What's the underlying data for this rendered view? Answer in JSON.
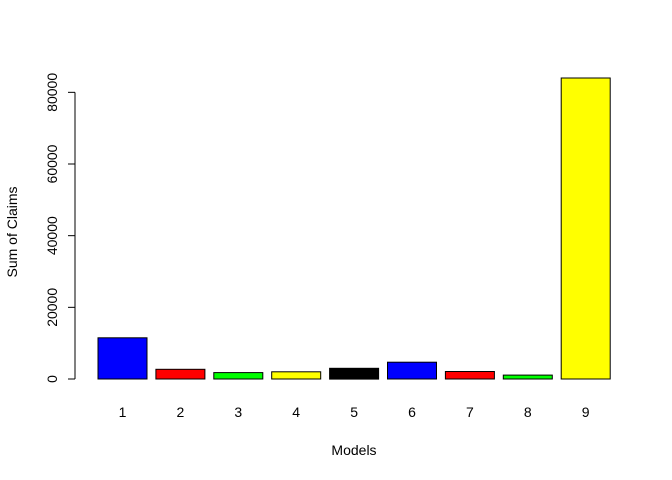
{
  "chart_data": {
    "type": "bar",
    "title": "",
    "xlabel": "Models",
    "ylabel": "Sum of Claims",
    "categories": [
      "1",
      "2",
      "3",
      "4",
      "5",
      "6",
      "7",
      "8",
      "9"
    ],
    "values": [
      11500,
      2700,
      1800,
      2000,
      3000,
      4700,
      2100,
      1100,
      84000
    ],
    "colors": [
      "#0000ff",
      "#ff0000",
      "#00ff00",
      "#ffff00",
      "#000000",
      "#0000ff",
      "#ff0000",
      "#00ff00",
      "#ffff00"
    ],
    "y_ticks": [
      0,
      20000,
      40000,
      60000,
      80000
    ],
    "y_tick_labels": [
      "0",
      "20000",
      "40000",
      "60000",
      "80000"
    ],
    "ylim": [
      0,
      84000
    ],
    "grid": false,
    "legend": "none"
  }
}
